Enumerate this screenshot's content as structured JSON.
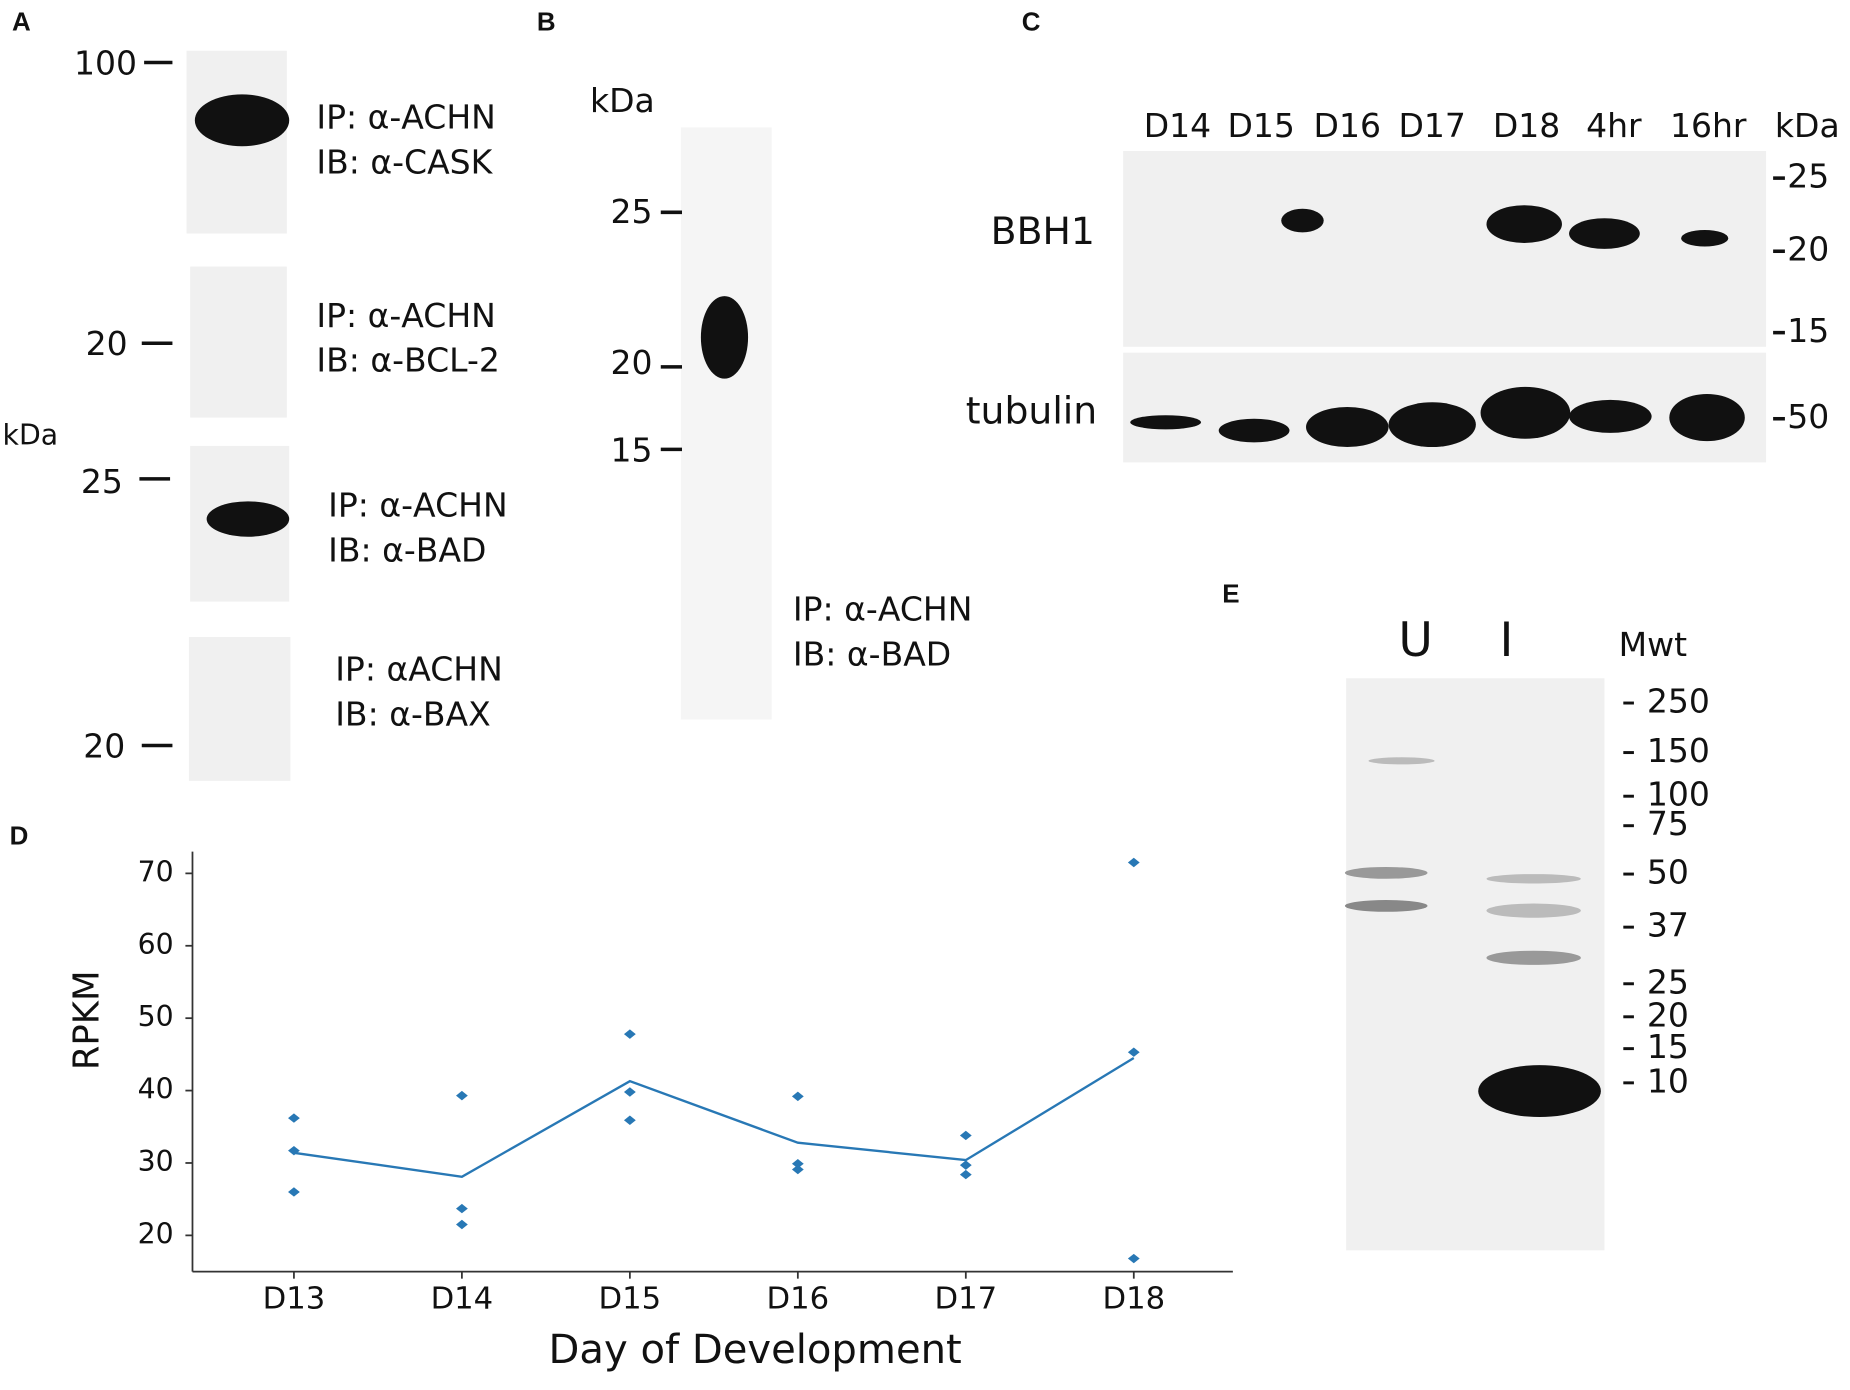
{
  "panels": {
    "A": {
      "label": "A",
      "unit": "kDa",
      "blots": [
        {
          "marker": 100,
          "ip": "IP: α-ACHN",
          "ib": "IB: α-CASK"
        },
        {
          "marker": 20,
          "ip": "IP: α-ACHN",
          "ib": "IB: α-BCL-2"
        },
        {
          "marker": 25,
          "ip": "IP: α-ACHN",
          "ib": "IB: α-BAD"
        },
        {
          "marker": 20,
          "ip": "IP: αACHN",
          "ib": "IB: α-BAX"
        }
      ]
    },
    "B": {
      "label": "B",
      "unit": "kDa",
      "markers": [
        25,
        20,
        15
      ],
      "ip": "IP: α-ACHN",
      "ib": "IB: α-BAD"
    },
    "C": {
      "label": "C",
      "lanes": [
        "D14",
        "D15",
        "D16",
        "D17",
        "D18",
        "4hr",
        "16hr"
      ],
      "unit": "kDa",
      "rows": [
        {
          "name": "BBH1",
          "markers": [
            25,
            20,
            15
          ]
        },
        {
          "name": "tubulin",
          "markers": [
            50
          ]
        }
      ]
    },
    "D": {
      "label": "D"
    },
    "E": {
      "label": "E",
      "lanes": [
        "U",
        "I"
      ],
      "unit": "Mwt",
      "markers": [
        250,
        150,
        100,
        75,
        50,
        37,
        25,
        20,
        15,
        10
      ]
    }
  },
  "chart_data": {
    "type": "line",
    "categories": [
      "D13",
      "D14",
      "D15",
      "D16",
      "D17",
      "D18"
    ],
    "values": [
      31.4,
      28.1,
      41.3,
      32.8,
      30.4,
      44.5
    ],
    "points": [
      [
        36.2,
        31.7,
        26
      ],
      [
        39.3,
        23.7,
        21.5
      ],
      [
        47.8,
        39.8,
        35.9
      ],
      [
        39.2,
        29.9,
        29.1
      ],
      [
        33.8,
        29.7,
        28.4
      ],
      [
        71.5,
        45.3,
        16.8
      ]
    ],
    "color": "#2878b5",
    "ylim": [
      15,
      73
    ],
    "yticks": [
      20,
      30,
      40,
      50,
      60,
      70
    ],
    "x_label": "Day of Development",
    "y_label": "RPKM"
  }
}
